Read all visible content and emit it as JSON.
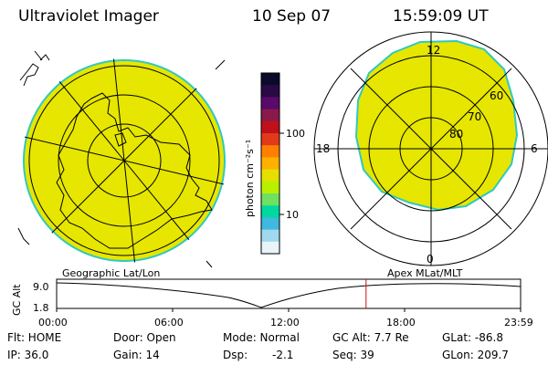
{
  "header": {
    "title": "Ultraviolet Imager",
    "date": "10 Sep 07",
    "time": "15:59:09 UT"
  },
  "colorbar": {
    "unit_label": "photon cm⁻²s⁻¹",
    "ticks": [
      "100",
      "10"
    ],
    "colors": [
      "#0a0a2a",
      "#2a0a44",
      "#5a0a6a",
      "#8a1a4a",
      "#c0101a",
      "#e03a1a",
      "#ff8000",
      "#ffb000",
      "#e6e000",
      "#b8f000",
      "#70e060",
      "#00d8a0",
      "#40b8e0",
      "#a0d8f0",
      "#e8f4f8"
    ]
  },
  "left_map": {
    "label": "Geographic Lat/Lon"
  },
  "right_map": {
    "label": "Apex  MLat/MLT",
    "mlt": {
      "top": "12",
      "left": "18",
      "right": "6",
      "bottom": "0"
    },
    "lats": [
      "80",
      "70",
      "60"
    ]
  },
  "altitude_plot": {
    "y_label": "GC Alt",
    "y_ticks": [
      "9.0",
      "1.8"
    ],
    "x_ticks": [
      "00:00",
      "06:00",
      "12:00",
      "18:00",
      "23:59"
    ],
    "current_time_frac": 0.667
  },
  "status": {
    "flt": "Flt: HOME",
    "ip": "IP: 36.0",
    "door": "Door: Open",
    "gain": "Gain: 14",
    "mode": "Mode: Normal",
    "dsp": "Dsp:",
    "dsp_value": "-2.1",
    "gc_alt": "GC Alt: 7.7 Re",
    "seq": "Seq: 39",
    "glat": "GLat: -86.8",
    "glon": "GLon: 209.7"
  },
  "colors": {
    "aurora": "#e6e600",
    "edge": "#30c8c0",
    "marker": "#d01010"
  }
}
